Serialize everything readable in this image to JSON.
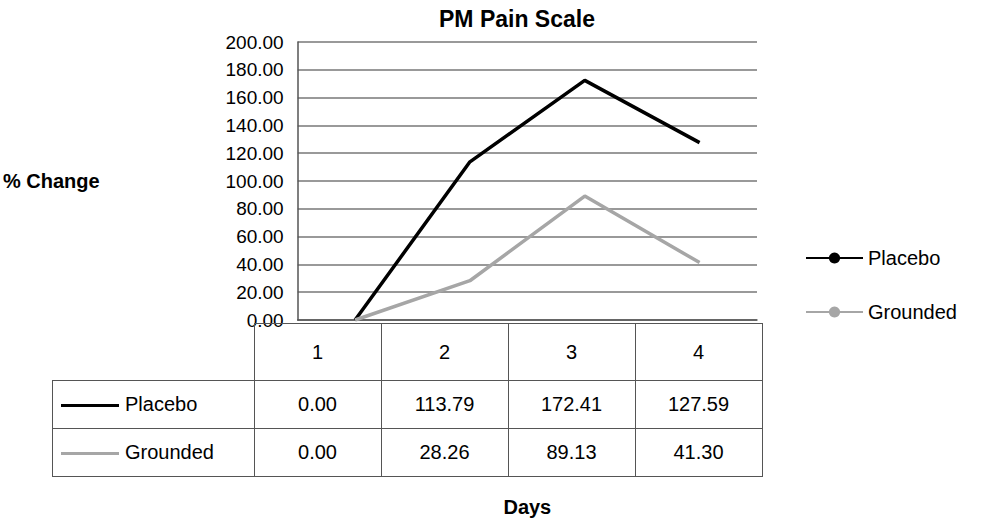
{
  "chart_data": {
    "type": "line",
    "title": "PM Pain Scale",
    "x_label": "Days",
    "y_label": "% Change",
    "categories": [
      "1",
      "2",
      "3",
      "4"
    ],
    "series": [
      {
        "name": "Placebo",
        "color": "#000000",
        "values": [
          0,
          113.79,
          172.41,
          127.59
        ],
        "value_labels": [
          "0.00",
          "113.79",
          "172.41",
          "127.59"
        ]
      },
      {
        "name": "Grounded",
        "color": "#a6a6a6",
        "values": [
          0,
          28.26,
          89.13,
          41.3
        ],
        "value_labels": [
          "0.00",
          "28.26",
          "89.13",
          "41.30"
        ]
      }
    ],
    "ylim": [
      0,
      200
    ],
    "yticks": [
      {
        "value": 0,
        "label": "0.00"
      },
      {
        "value": 20,
        "label": "20.00"
      },
      {
        "value": 40,
        "label": "40.00"
      },
      {
        "value": 60,
        "label": "60.00"
      },
      {
        "value": 80,
        "label": "80.00"
      },
      {
        "value": 100,
        "label": "100.00"
      },
      {
        "value": 120,
        "label": "120.00"
      },
      {
        "value": 140,
        "label": "140.00"
      },
      {
        "value": 160,
        "label": "160.00"
      },
      {
        "value": 180,
        "label": "180.00"
      },
      {
        "value": 200,
        "label": "200.00"
      }
    ],
    "grid": true,
    "legend": "right"
  }
}
